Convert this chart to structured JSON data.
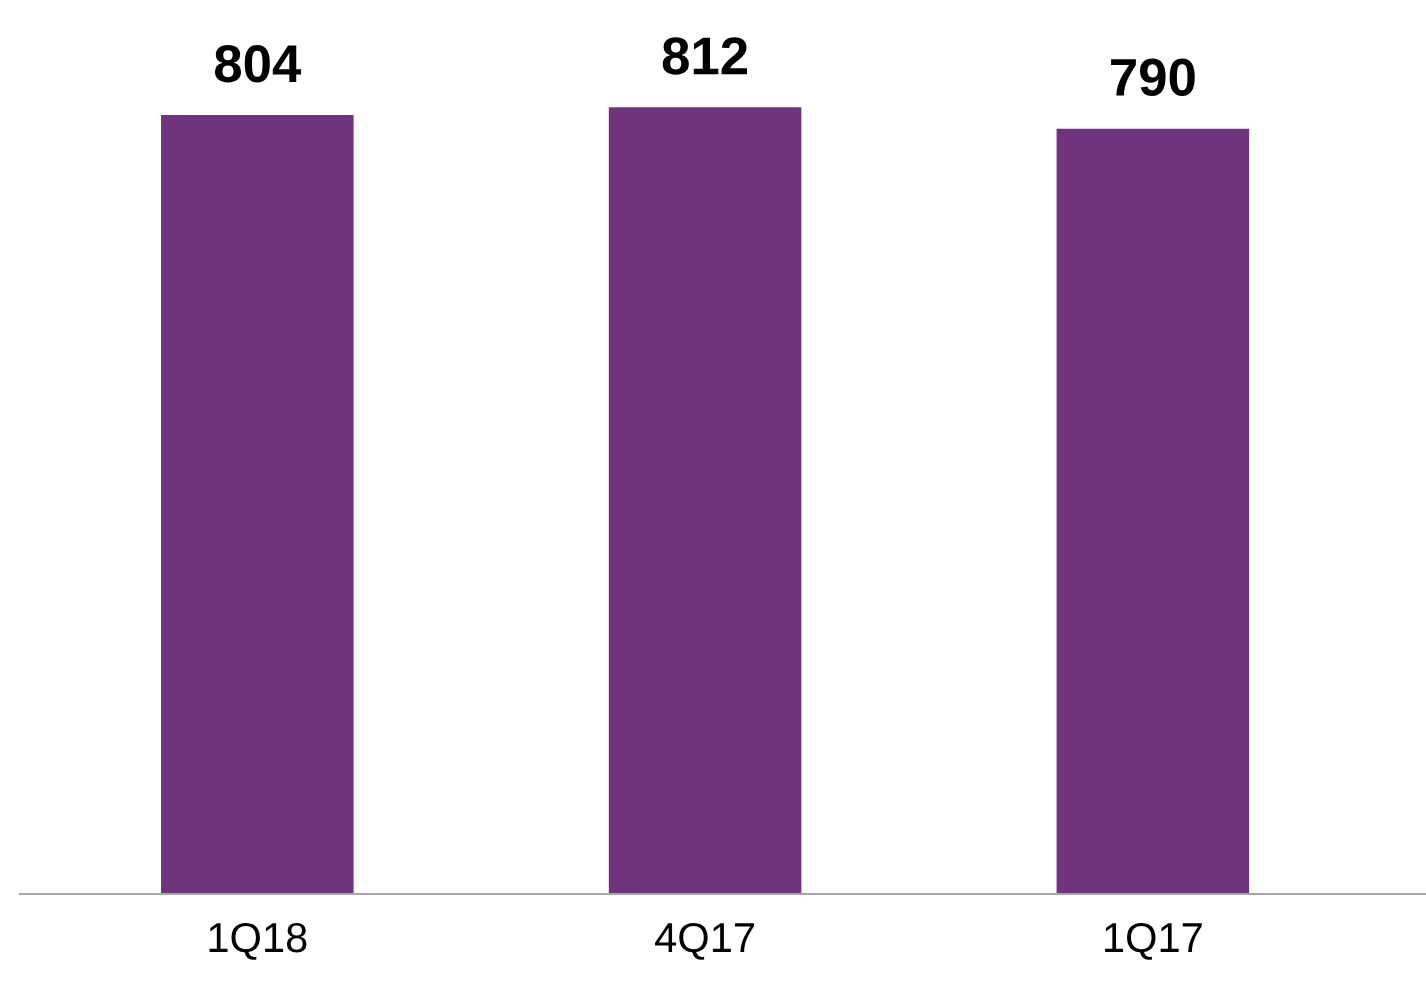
{
  "chart_data": {
    "type": "bar",
    "categories": [
      "1Q18",
      "4Q17",
      "1Q17"
    ],
    "values": [
      804,
      812,
      790
    ],
    "color": "#70337d",
    "data_labels": true,
    "grid": false,
    "legend": false
  }
}
